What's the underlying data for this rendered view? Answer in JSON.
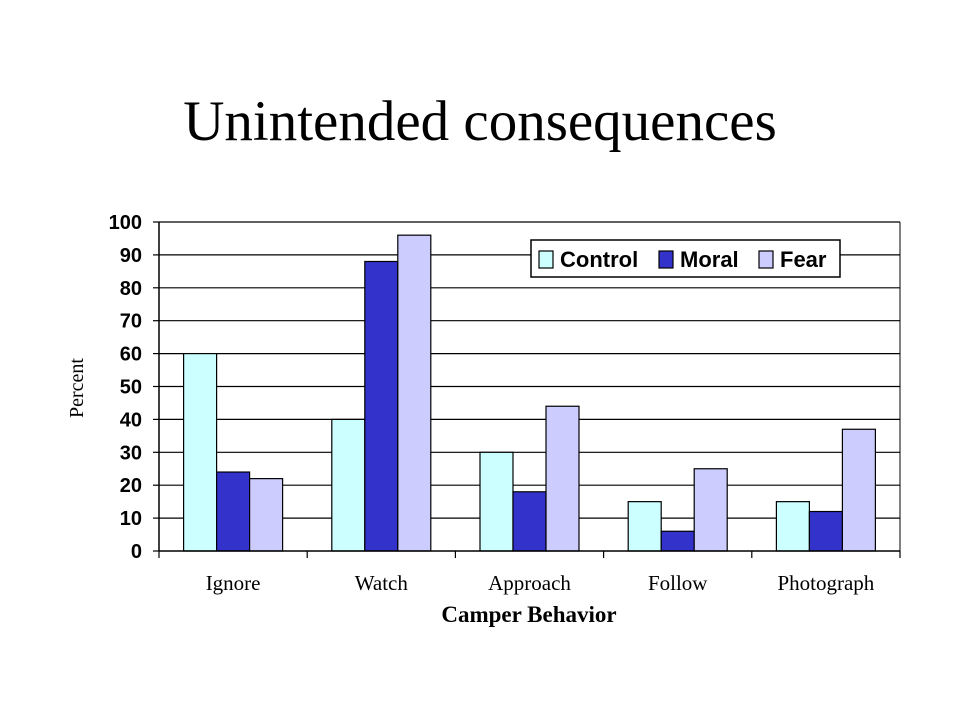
{
  "slide": {
    "title": "Unintended consequences"
  },
  "chart_data": {
    "type": "bar",
    "categories": [
      "Ignore",
      "Watch",
      "Approach",
      "Follow",
      "Photograph"
    ],
    "series": [
      {
        "name": "Control",
        "values": [
          60,
          40,
          30,
          15,
          15
        ],
        "color": "#CCFFFF"
      },
      {
        "name": "Moral",
        "values": [
          24,
          88,
          18,
          6,
          12
        ],
        "color": "#3333CC"
      },
      {
        "name": "Fear",
        "values": [
          22,
          96,
          44,
          25,
          37
        ],
        "color": "#CCCCFF"
      }
    ],
    "xlabel": "Camper Behavior",
    "ylabel": "Percent",
    "ylim": [
      0,
      100
    ],
    "yticks": [
      0,
      10,
      20,
      30,
      40,
      50,
      60,
      70,
      80,
      90,
      100
    ],
    "grid": true,
    "legend_position": "top-right"
  }
}
